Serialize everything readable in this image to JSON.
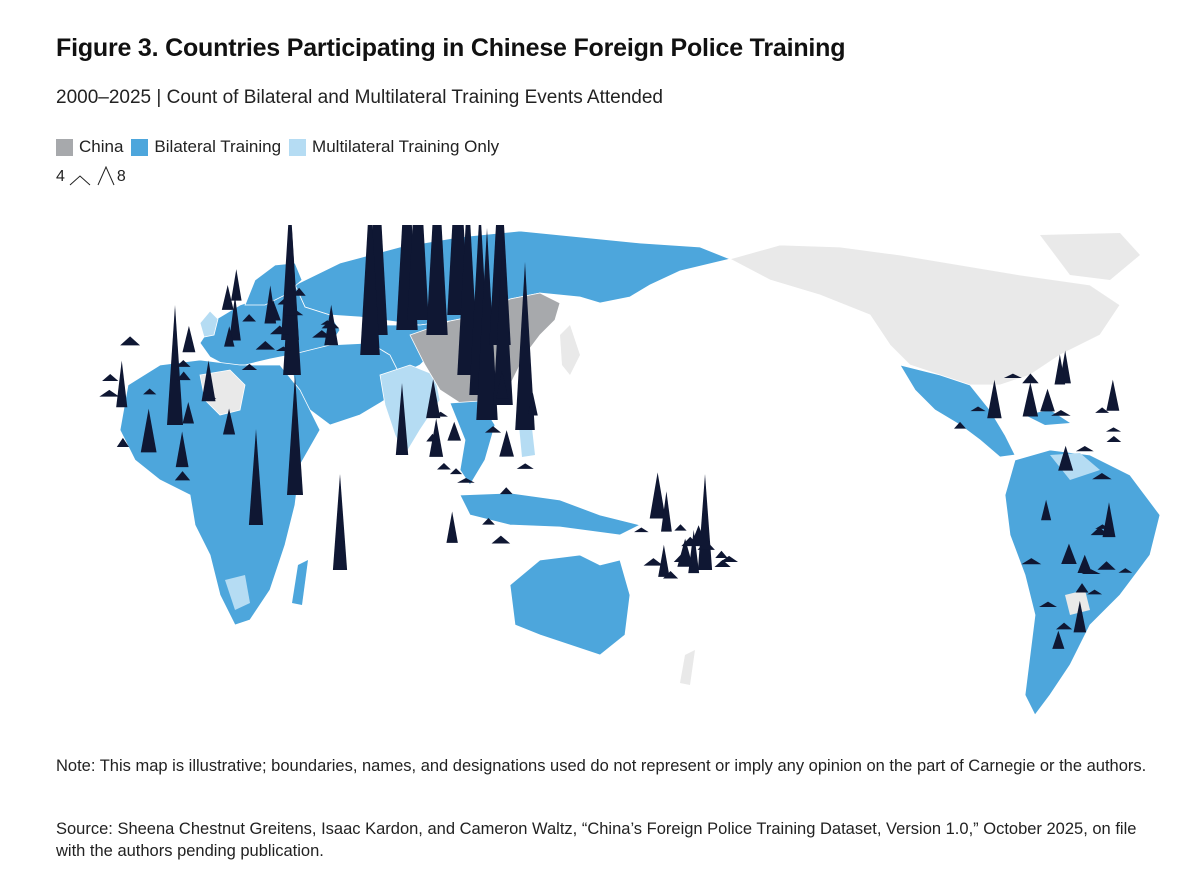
{
  "title": "Figure 3. Countries Participating in Chinese Foreign Police Training",
  "subtitle": "2000–2025 | Count of Bilateral and Multilateral Training Events Attended",
  "legend": {
    "items": [
      {
        "label": "China",
        "color": "#a7a9ac"
      },
      {
        "label": "Bilateral Training",
        "color": "#4da6dc"
      },
      {
        "label": "Multilateral Training Only",
        "color": "#b5dcf3"
      }
    ],
    "size_min_label": "4",
    "size_max_label": "8"
  },
  "colors": {
    "china": "#a7a9ac",
    "bilateral": "#4da6dc",
    "multilateral": "#b5dcf3",
    "no_training": "#e9e9e9",
    "spike": "#0f1733"
  },
  "spike_levels": {
    "level_units": "relative count (size legend: 4 to 8)",
    "major": [
      8,
      8,
      8,
      8,
      8,
      8,
      8,
      8,
      8,
      7,
      7,
      7,
      6,
      6,
      5,
      5,
      4,
      4,
      4,
      3
    ],
    "medium_count": 40,
    "small_count": 60
  },
  "note": "Note: This map is illustrative; boundaries, names, and designations used do not represent or imply any opinion on the part of Carnegie or the authors.",
  "source": "Source: Sheena Chestnut Greitens, Isaac Kardon, and Cameron Waltz, “China’s Foreign Police Training Dataset, Version 1.0,” October 2025, on file with the authors pending publication."
}
